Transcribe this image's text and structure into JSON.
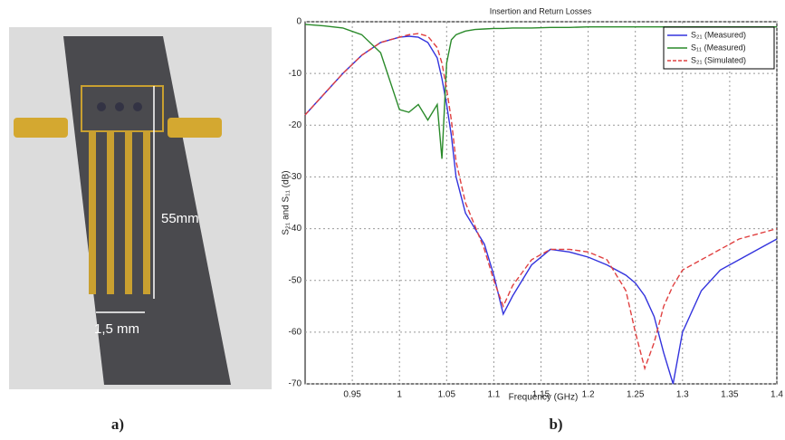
{
  "photo": {
    "length_label": "55mm",
    "width_label": "1,5 mm"
  },
  "captions": [
    "a)",
    "b)"
  ],
  "chart_data": {
    "type": "line",
    "title": "Insertion and Return Losses",
    "x_label": "Frequency (GHz)",
    "y_label": "S₂₁ and S₁₁ (dB)",
    "x": [
      0.9,
      0.92,
      0.94,
      0.96,
      0.98,
      1.0,
      1.01,
      1.02,
      1.03,
      1.04,
      1.045,
      1.05,
      1.055,
      1.06,
      1.07,
      1.08,
      1.09,
      1.1,
      1.11,
      1.12,
      1.14,
      1.16,
      1.18,
      1.2,
      1.22,
      1.24,
      1.25,
      1.26,
      1.27,
      1.28,
      1.29,
      1.3,
      1.32,
      1.34,
      1.36,
      1.38,
      1.4
    ],
    "series": [
      {
        "name": "S₂₁ (Measured)",
        "color": "#3333dd",
        "dash": false,
        "values": [
          -18,
          -14,
          -10,
          -6.5,
          -4,
          -3,
          -2.8,
          -3,
          -4,
          -7,
          -11,
          -16,
          -22,
          -30,
          -37,
          -40,
          -43,
          -49,
          -56.5,
          -53,
          -47,
          -44,
          -44.5,
          -45.5,
          -47,
          -49,
          -50.5,
          -53,
          -57,
          -64,
          -70,
          -60,
          -52,
          -48,
          -46,
          -44,
          -42
        ]
      },
      {
        "name": "S₁₁ (Measured)",
        "color": "#2a8a2a",
        "dash": false,
        "values": [
          -0.5,
          -0.8,
          -1.2,
          -2.5,
          -6,
          -17,
          -17.5,
          -16,
          -19,
          -16,
          -26.5,
          -8,
          -3.5,
          -2.5,
          -1.8,
          -1.5,
          -1.4,
          -1.3,
          -1.3,
          -1.2,
          -1.2,
          -1.1,
          -1.1,
          -1.0,
          -1.0,
          -1.0,
          -1.0,
          -1.0,
          -1.0,
          -1.0,
          -1.0,
          -1.0,
          -1.0,
          -1.0,
          -1.0,
          -1.0,
          -1.0
        ]
      },
      {
        "name": "S₂₁ (Simulated)",
        "color": "#e04040",
        "dash": true,
        "values": [
          -18,
          -14,
          -10,
          -6.5,
          -4,
          -3,
          -2.5,
          -2.3,
          -2.8,
          -5,
          -8,
          -13,
          -19,
          -27,
          -35,
          -39.5,
          -44,
          -50,
          -55,
          -51,
          -46,
          -44,
          -44,
          -44.5,
          -46,
          -52,
          -60,
          -67,
          -62,
          -55,
          -51,
          -48,
          -46,
          -44,
          -42,
          -41,
          -40
        ]
      }
    ],
    "xlim": [
      0.9,
      1.4
    ],
    "ylim": [
      -70,
      0
    ],
    "xticks": [
      0.95,
      1,
      1.05,
      1.1,
      1.15,
      1.2,
      1.25,
      1.3,
      1.35,
      1.4
    ],
    "yticks": [
      0,
      -10,
      -20,
      -30,
      -40,
      -50,
      -60,
      -70
    ],
    "grid": true,
    "legend": "upper right"
  }
}
